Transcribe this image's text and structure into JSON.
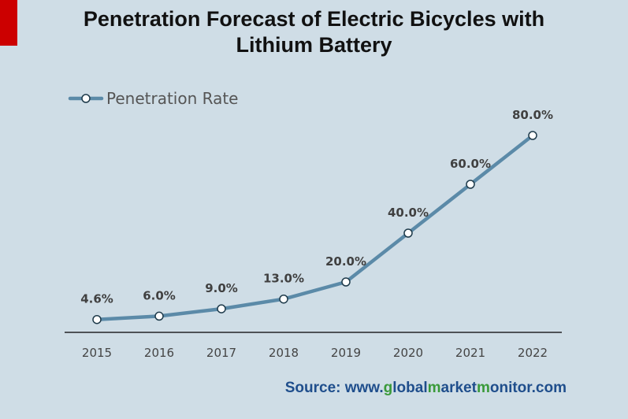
{
  "colors": {
    "background": "#cfdde6",
    "line": "#5b8aa8",
    "corner_mark": "#cc0000",
    "source_blue": "#1f4e8c",
    "source_green": "#3a9a3a"
  },
  "source": {
    "prefix": "Source: www.",
    "p1": "g",
    "p2": "lobal",
    "p3": "m",
    "p4": "arket",
    "p5": "m",
    "p6": "onitor",
    "p7": ".com"
  },
  "chart_data": {
    "type": "line",
    "title_line1": "Penetration Forecast of Electric Bicycles  with",
    "title_line2": "Lithium Battery",
    "categories": [
      "2015",
      "2016",
      "2017",
      "2018",
      "2019",
      "2020",
      "2021",
      "2022"
    ],
    "series": [
      {
        "name": "Penetration Rate",
        "values": [
          4.6,
          6.0,
          9.0,
          13.0,
          20.0,
          40.0,
          60.0,
          80.0
        ],
        "labels": [
          "4.6%",
          "6.0%",
          "9.0%",
          "13.0%",
          "20.0%",
          "40.0%",
          "60.0%",
          "80.0%"
        ]
      }
    ],
    "ylim": [
      0,
      100
    ],
    "grid": false,
    "legend": "top-left",
    "data_labels": true
  }
}
